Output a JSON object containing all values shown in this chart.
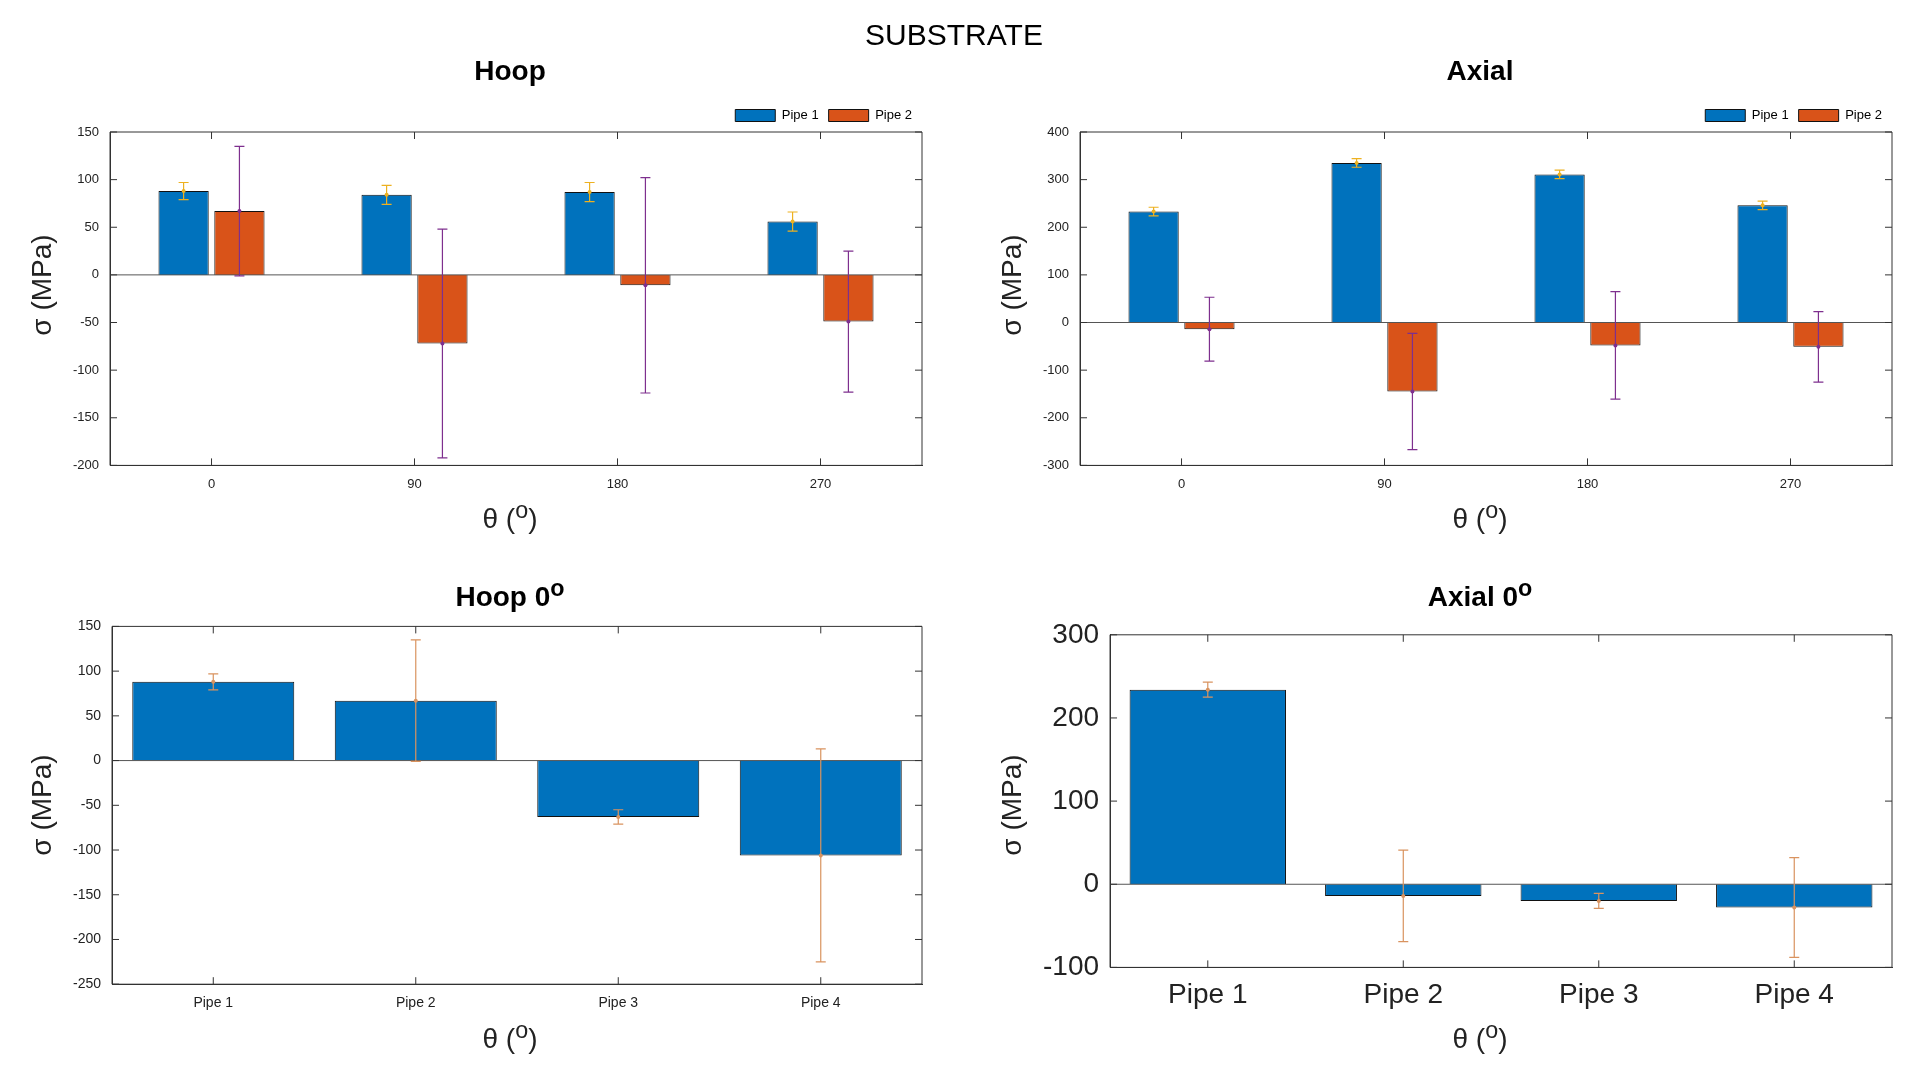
{
  "chart_data": [
    {
      "type": "bar",
      "title": "Hoop",
      "annotations": [
        "SUBSTRATE"
      ],
      "xlabel": "θ ($^{o}$)",
      "ylabel": "σ (MPa)",
      "categories": [
        "0",
        "90",
        "180",
        "270"
      ],
      "series": [
        {
          "name": "Pipe 1",
          "color": "#0072bd",
          "values": [
            88,
            84,
            87,
            56
          ],
          "errors": [
            9,
            10,
            10,
            10
          ]
        },
        {
          "name": "Pipe 2",
          "color": "#d95319",
          "values": [
            67,
            -72,
            -11,
            -49
          ],
          "errors": [
            68,
            120,
            113,
            74
          ]
        }
      ],
      "ylim": [
        -200,
        150
      ],
      "yticks": [
        -200,
        -150,
        -100,
        -50,
        0,
        50,
        100,
        150
      ],
      "legend": "top right",
      "grid": false,
      "ref_lines": [
        {
          "axis": "y",
          "value": 0,
          "color": "#555555"
        }
      ]
    },
    {
      "type": "bar",
      "title": "Axial",
      "xlabel": "θ ($^{o}$)",
      "ylabel": "σ (MPa)",
      "categories": [
        "0",
        "90",
        "180",
        "270"
      ],
      "series": [
        {
          "name": "Pipe 1",
          "color": "#0072bd",
          "values": [
            233,
            335,
            311,
            246
          ],
          "errors": [
            9,
            9,
            9,
            9
          ]
        },
        {
          "name": "Pipe 2",
          "color": "#d95319",
          "values": [
            -14,
            -145,
            -48,
            -51
          ],
          "errors": [
            67,
            122,
            113,
            74
          ]
        }
      ],
      "ylim": [
        -300,
        400
      ],
      "yticks": [
        -300,
        -200,
        -100,
        0,
        100,
        200,
        300,
        400
      ],
      "legend": "top right",
      "grid": false,
      "ref_lines": [
        {
          "axis": "y",
          "value": 0,
          "color": "#555555"
        }
      ]
    },
    {
      "type": "bar",
      "title": "Hoop 0$^{o}$",
      "xlabel": "θ ($^{o}$)",
      "ylabel": "σ (MPa)",
      "categories": [
        "Pipe 1",
        "Pipe 2",
        "Pipe 3",
        "Pipe 4"
      ],
      "values": [
        88,
        67,
        -63,
        -106
      ],
      "errors": [
        9,
        68,
        8,
        119
      ],
      "color": "#0072bd",
      "ylim": [
        -250,
        150
      ],
      "yticks": [
        -250,
        -200,
        -150,
        -100,
        -50,
        0,
        50,
        100,
        150
      ],
      "grid": false,
      "ref_lines": [
        {
          "axis": "y",
          "value": 0,
          "color": "#555555"
        }
      ]
    },
    {
      "type": "bar",
      "title": "Axial 0$^{o}$",
      "xlabel": "θ ($^{o}$)",
      "ylabel": "σ (MPa)",
      "categories": [
        "Pipe 1",
        "Pipe 2",
        "Pipe 3",
        "Pipe 4"
      ],
      "values": [
        234,
        -14,
        -20,
        -28
      ],
      "errors": [
        9,
        55,
        9,
        60
      ],
      "color": "#0072bd",
      "ylim": [
        -100,
        300
      ],
      "yticks": [
        -100,
        0,
        100,
        200,
        300
      ],
      "grid": false,
      "ref_lines": [
        {
          "axis": "y",
          "value": 0,
          "color": "#555555"
        }
      ]
    }
  ]
}
